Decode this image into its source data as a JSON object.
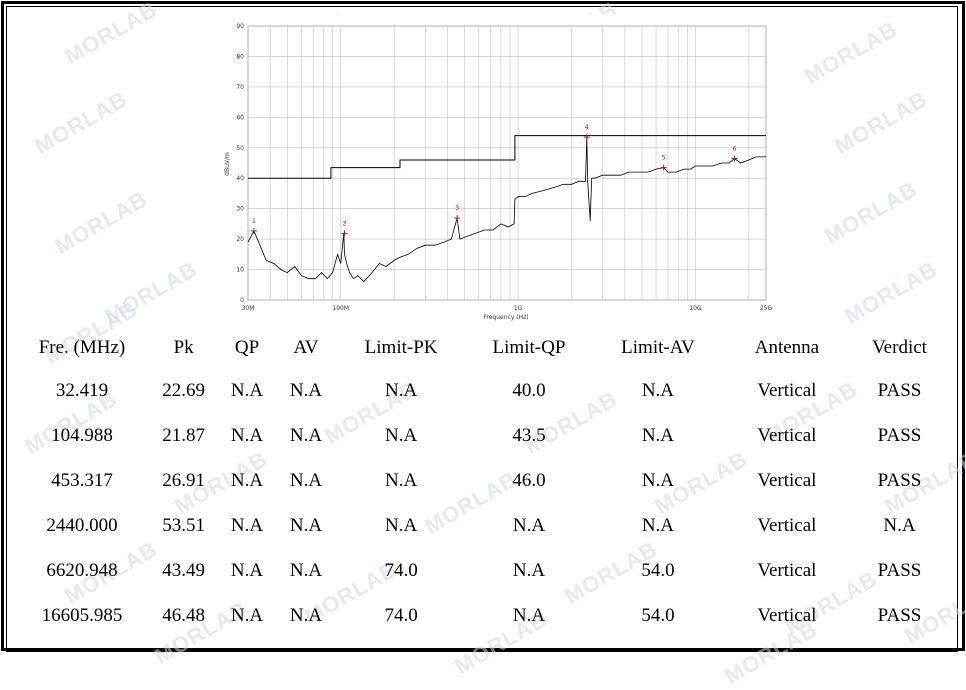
{
  "chart_data": {
    "type": "line",
    "xlabel": "Frequency (Hz)",
    "ylabel": "dBuV/m",
    "xscale": "log",
    "xlim": [
      30,
      25000
    ],
    "ylim": [
      0,
      90
    ],
    "y_ticks": [
      0,
      10,
      20,
      30,
      40,
      50,
      60,
      70,
      80,
      90
    ],
    "x_tick_labels": [
      "30M",
      "100M",
      "1G",
      "10G",
      "25G"
    ],
    "x_tick_values": [
      30,
      100,
      1000,
      10000,
      25000
    ],
    "grid": true,
    "limit_line": {
      "x": [
        30,
        88,
        88,
        216,
        216,
        960,
        960,
        25000
      ],
      "y": [
        40,
        40,
        43.5,
        43.5,
        46,
        46,
        54,
        54
      ]
    },
    "series": [
      {
        "x": [
          30,
          32.4,
          35,
          38,
          42,
          46,
          50,
          55,
          60,
          66,
          72,
          78,
          84,
          90,
          96,
          100,
          104,
          105,
          108,
          112,
          118,
          125,
          135,
          150,
          165,
          180,
          200,
          215,
          240,
          270,
          300,
          340,
          380,
          420,
          453,
          470,
          520,
          580,
          650,
          720,
          800,
          880,
          950,
          960,
          1000,
          1100,
          1200,
          1400,
          1600,
          1800,
          2000,
          2200,
          2400,
          2440,
          2470,
          2550,
          2600,
          2700,
          3000,
          3400,
          3800,
          4200,
          4800,
          5400,
          6000,
          6620,
          7000,
          7800,
          8600,
          9400,
          10000,
          11000,
          12500,
          14000,
          15500,
          16600,
          18000,
          20000,
          22000,
          25000
        ],
        "values": [
          19,
          22.69,
          18,
          13,
          12,
          10,
          9,
          11,
          8,
          7,
          7,
          9,
          7,
          9,
          15,
          12,
          21.87,
          15,
          12,
          9,
          7,
          8,
          6,
          9,
          12,
          11,
          13,
          14,
          15,
          17,
          18,
          18,
          19,
          20,
          26.91,
          20,
          21,
          22,
          23,
          23,
          25,
          24,
          25,
          33,
          34,
          34,
          35,
          36,
          37,
          38,
          38,
          39,
          39,
          53.51,
          39,
          26,
          40,
          40,
          41,
          41,
          41,
          42,
          42,
          42,
          43,
          43.49,
          42,
          42,
          43,
          43,
          44,
          44,
          44,
          45,
          45,
          46.48,
          45,
          46,
          47,
          47
        ]
      }
    ],
    "markers": [
      {
        "label": "1",
        "x": 32.419,
        "y": 22.69
      },
      {
        "label": "2",
        "x": 104.988,
        "y": 21.87
      },
      {
        "label": "3",
        "x": 453.317,
        "y": 26.91
      },
      {
        "label": "4",
        "x": 2440.0,
        "y": 53.51
      },
      {
        "label": "5",
        "x": 6620.948,
        "y": 43.49
      },
      {
        "label": "6",
        "x": 16605.985,
        "y": 46.48
      }
    ]
  },
  "table": {
    "headers": [
      "Fre. (MHz)",
      "Pk",
      "QP",
      "AV",
      "Limit-PK",
      "Limit-QP",
      "Limit-AV",
      "Antenna",
      "Verdict"
    ],
    "rows": [
      [
        "32.419",
        "22.69",
        "N.A",
        "N.A",
        "N.A",
        "40.0",
        "N.A",
        "Vertical",
        "PASS"
      ],
      [
        "104.988",
        "21.87",
        "N.A",
        "N.A",
        "N.A",
        "43.5",
        "N.A",
        "Vertical",
        "PASS"
      ],
      [
        "453.317",
        "26.91",
        "N.A",
        "N.A",
        "N.A",
        "46.0",
        "N.A",
        "Vertical",
        "PASS"
      ],
      [
        "2440.000",
        "53.51",
        "N.A",
        "N.A",
        "N.A",
        "N.A",
        "N.A",
        "Vertical",
        "N.A"
      ],
      [
        "6620.948",
        "43.49",
        "N.A",
        "N.A",
        "74.0",
        "N.A",
        "54.0",
        "Vertical",
        "PASS"
      ],
      [
        "16605.985",
        "46.48",
        "N.A",
        "N.A",
        "74.0",
        "N.A",
        "54.0",
        "Vertical",
        "PASS"
      ]
    ]
  },
  "watermark": {
    "text": "MORLAB"
  },
  "colors": {
    "trace": "#000000",
    "limit": "#000000",
    "marker": "#cc0000",
    "grid": "#c0c0c0",
    "watermark": "#d6dae6"
  }
}
